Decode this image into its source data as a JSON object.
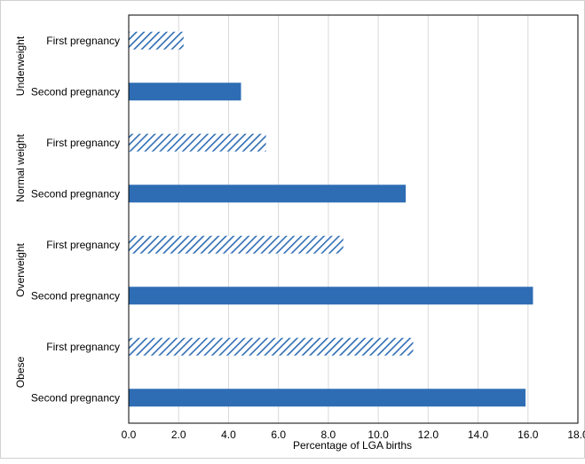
{
  "chart_data": {
    "type": "bar",
    "orientation": "horizontal",
    "xlabel": "Percentage of LGA births",
    "xlim": [
      0,
      18
    ],
    "xticks": [
      "0.0",
      "2.0",
      "4.0",
      "6.0",
      "8.0",
      "10.0",
      "12.0",
      "14.0",
      "16.0",
      "18.0"
    ],
    "grid": "vertical",
    "bar_color": "#2e6db4",
    "groups": [
      {
        "label": "Underweight",
        "bars": [
          {
            "label": "First pregnancy",
            "value": 2.2,
            "pattern": "hatched"
          },
          {
            "label": "Second pregnancy",
            "value": 4.5,
            "pattern": "solid"
          }
        ]
      },
      {
        "label": "Normal weight",
        "bars": [
          {
            "label": "First pregnancy",
            "value": 5.5,
            "pattern": "hatched"
          },
          {
            "label": "Second pregnancy",
            "value": 11.1,
            "pattern": "solid"
          }
        ]
      },
      {
        "label": "Overweight",
        "bars": [
          {
            "label": "First pregnancy",
            "value": 8.6,
            "pattern": "hatched"
          },
          {
            "label": "Second pregnancy",
            "value": 16.2,
            "pattern": "solid"
          }
        ]
      },
      {
        "label": "Obese",
        "bars": [
          {
            "label": "First pregnancy",
            "value": 11.4,
            "pattern": "hatched"
          },
          {
            "label": "Second pregnancy",
            "value": 15.9,
            "pattern": "solid"
          }
        ]
      }
    ]
  }
}
